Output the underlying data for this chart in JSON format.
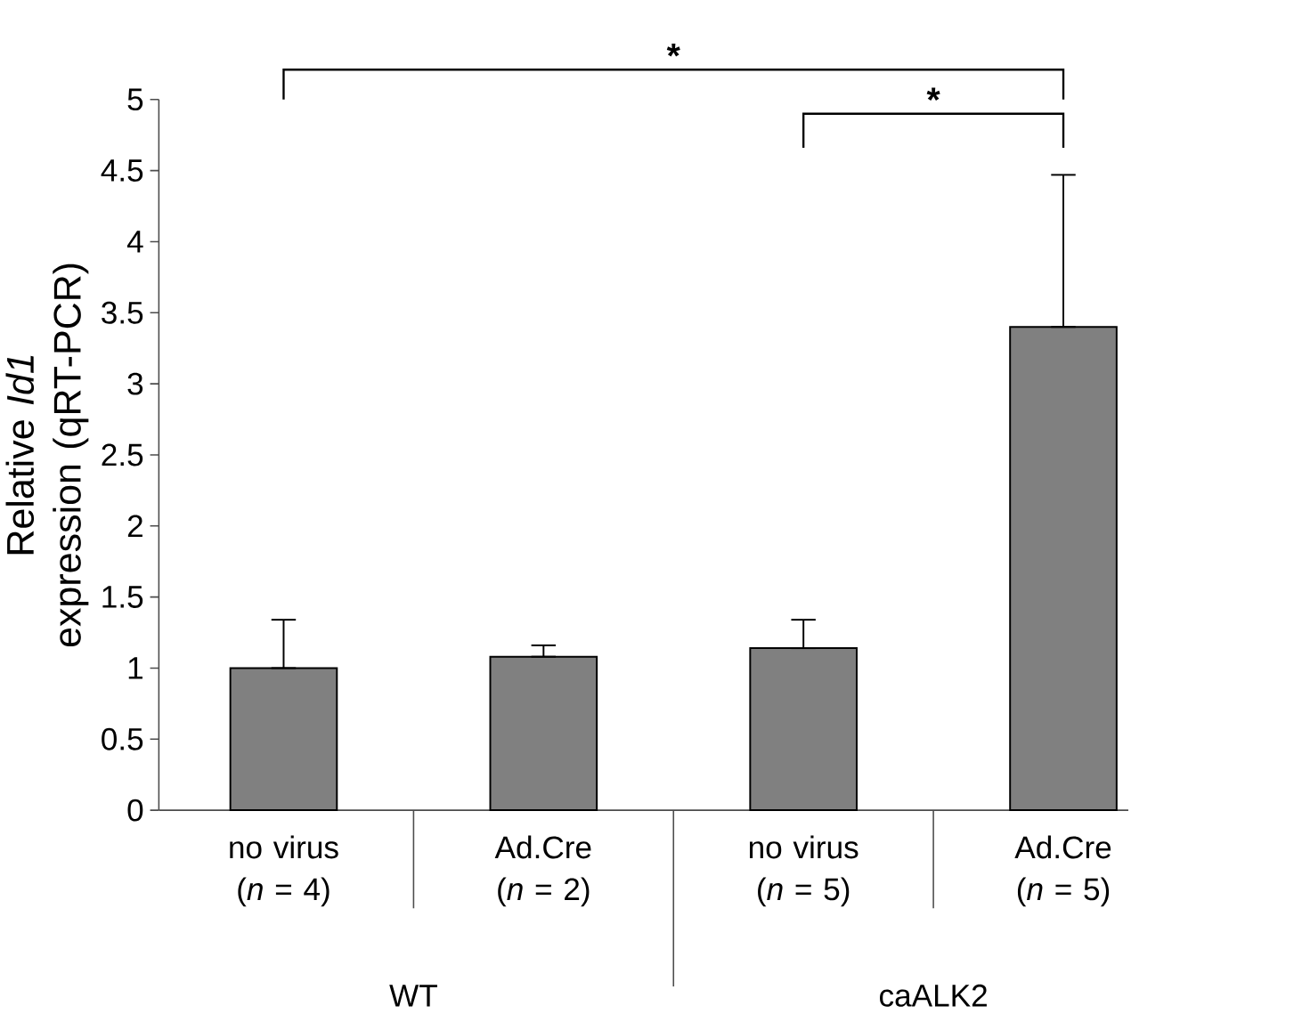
{
  "chart_data": {
    "type": "bar",
    "ylabel": "Relative *Id1* expression (qRT-PCR)",
    "categories": [
      "no virus (*n* = 4)",
      "Ad.Cre (*n* = 2)",
      "no virus (*n* = 5)",
      "Ad.Cre (*n* = 5)"
    ],
    "values": [
      1.0,
      1.08,
      1.14,
      3.4
    ],
    "errors": [
      [
        1.0,
        1.34
      ],
      [
        1.08,
        1.16
      ],
      [
        1.14,
        1.34
      ],
      [
        3.4,
        4.47
      ]
    ],
    "color": "#808080",
    "ylim": [
      0,
      5
    ],
    "yticks": [
      0,
      0.5,
      1,
      1.5,
      2,
      2.5,
      3,
      3.5,
      4,
      4.5,
      5
    ],
    "annotations": [
      "*",
      "*",
      "WT",
      "caALK2"
    ],
    "grid": false
  }
}
